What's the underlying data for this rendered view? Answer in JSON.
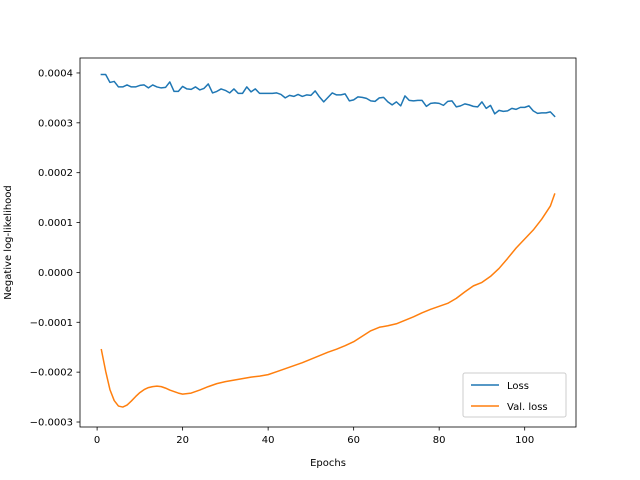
{
  "chart_data": {
    "type": "line",
    "xlabel": "Epochs",
    "ylabel": "Negative log-likelihood",
    "xlim": [
      -4,
      112
    ],
    "ylim": [
      -0.00031,
      0.00043
    ],
    "xticks": [
      0,
      20,
      40,
      60,
      80,
      100
    ],
    "xtick_labels": [
      "0",
      "20",
      "40",
      "60",
      "80",
      "100"
    ],
    "yticks": [
      -0.0003,
      -0.0002,
      -0.0001,
      0.0,
      0.0001,
      0.0002,
      0.0003,
      0.0004
    ],
    "ytick_labels": [
      "−0.0003",
      "−0.0002",
      "−0.0001",
      "0.0000",
      "0.0001",
      "0.0002",
      "0.0003",
      "0.0004"
    ],
    "grid": false,
    "legend_position": "lower-right",
    "series": [
      {
        "name": "Loss",
        "color": "#1f77b4",
        "x": [
          1,
          2,
          3,
          4,
          5,
          6,
          7,
          8,
          9,
          10,
          11,
          12,
          13,
          14,
          15,
          16,
          17,
          18,
          19,
          20,
          21,
          22,
          23,
          24,
          25,
          26,
          27,
          28,
          29,
          30,
          31,
          32,
          33,
          34,
          35,
          36,
          37,
          38,
          39,
          40,
          41,
          42,
          43,
          44,
          45,
          46,
          47,
          48,
          49,
          50,
          51,
          52,
          53,
          54,
          55,
          56,
          57,
          58,
          59,
          60,
          61,
          62,
          63,
          64,
          65,
          66,
          67,
          68,
          69,
          70,
          71,
          72,
          73,
          74,
          75,
          76,
          77,
          78,
          79,
          80,
          81,
          82,
          83,
          84,
          85,
          86,
          87,
          88,
          89,
          90,
          91,
          92,
          93,
          94,
          95,
          96,
          97,
          98,
          99,
          100,
          101,
          102,
          103,
          104,
          105,
          106,
          107
        ],
        "y": [
          0.000397,
          0.000397,
          0.000381,
          0.000383,
          0.000372,
          0.000372,
          0.000376,
          0.000372,
          0.000372,
          0.000375,
          0.000376,
          0.00037,
          0.000376,
          0.000372,
          0.00037,
          0.000371,
          0.000382,
          0.000363,
          0.000363,
          0.000373,
          0.000368,
          0.000367,
          0.000372,
          0.000366,
          0.000369,
          0.000378,
          0.00036,
          0.000363,
          0.000368,
          0.000365,
          0.00036,
          0.000368,
          0.000359,
          0.000359,
          0.000372,
          0.000362,
          0.000368,
          0.000359,
          0.000359,
          0.000359,
          0.000359,
          0.00036,
          0.000357,
          0.00035,
          0.000355,
          0.000353,
          0.000357,
          0.000353,
          0.000356,
          0.000355,
          0.000364,
          0.000352,
          0.000342,
          0.000351,
          0.00036,
          0.000356,
          0.000356,
          0.000358,
          0.000344,
          0.000346,
          0.000352,
          0.000351,
          0.000349,
          0.000344,
          0.000343,
          0.00035,
          0.000351,
          0.000342,
          0.000336,
          0.000342,
          0.000334,
          0.000354,
          0.000345,
          0.000344,
          0.000345,
          0.000345,
          0.000333,
          0.000339,
          0.00034,
          0.000339,
          0.000335,
          0.000343,
          0.000344,
          0.000332,
          0.000334,
          0.000338,
          0.000336,
          0.000333,
          0.000332,
          0.000342,
          0.000329,
          0.000335,
          0.000318,
          0.000325,
          0.000323,
          0.000324,
          0.000329,
          0.000327,
          0.000331,
          0.000331,
          0.000334,
          0.000324,
          0.000319,
          0.00032,
          0.00032,
          0.000322,
          0.000313
        ]
      },
      {
        "name": "Val. loss",
        "color": "#ff7f0e",
        "x": [
          1,
          2,
          3,
          4,
          5,
          6,
          7,
          8,
          9,
          10,
          11,
          12,
          13,
          14,
          15,
          16,
          17,
          18,
          19,
          20,
          22,
          24,
          26,
          28,
          30,
          32,
          34,
          36,
          38,
          40,
          42,
          44,
          46,
          48,
          50,
          52,
          54,
          56,
          58,
          60,
          62,
          64,
          66,
          68,
          70,
          72,
          74,
          76,
          78,
          80,
          82,
          84,
          86,
          88,
          90,
          92,
          94,
          96,
          98,
          100,
          102,
          104,
          106,
          107
        ],
        "y": [
          -0.000155,
          -0.000198,
          -0.000235,
          -0.000257,
          -0.000268,
          -0.00027,
          -0.000266,
          -0.000258,
          -0.000249,
          -0.000241,
          -0.000235,
          -0.000231,
          -0.000229,
          -0.000228,
          -0.000229,
          -0.000232,
          -0.000236,
          -0.000239,
          -0.000242,
          -0.000244,
          -0.000242,
          -0.000236,
          -0.000229,
          -0.000223,
          -0.000219,
          -0.000216,
          -0.000213,
          -0.00021,
          -0.000208,
          -0.000205,
          -0.000199,
          -0.000193,
          -0.000187,
          -0.000181,
          -0.000174,
          -0.000167,
          -0.00016,
          -0.000154,
          -0.000147,
          -0.000139,
          -0.000128,
          -0.000117,
          -0.00011,
          -0.000107,
          -0.000103,
          -9.6e-05,
          -8.9e-05,
          -8.1e-05,
          -7.4e-05,
          -6.8e-05,
          -6.2e-05,
          -5.2e-05,
          -3.9e-05,
          -2.7e-05,
          -2e-05,
          -8e-06,
          8e-06,
          2.8e-05,
          4.9e-05,
          6.7e-05,
          8.5e-05,
          0.000107,
          0.000133,
          0.000157
        ]
      }
    ]
  }
}
